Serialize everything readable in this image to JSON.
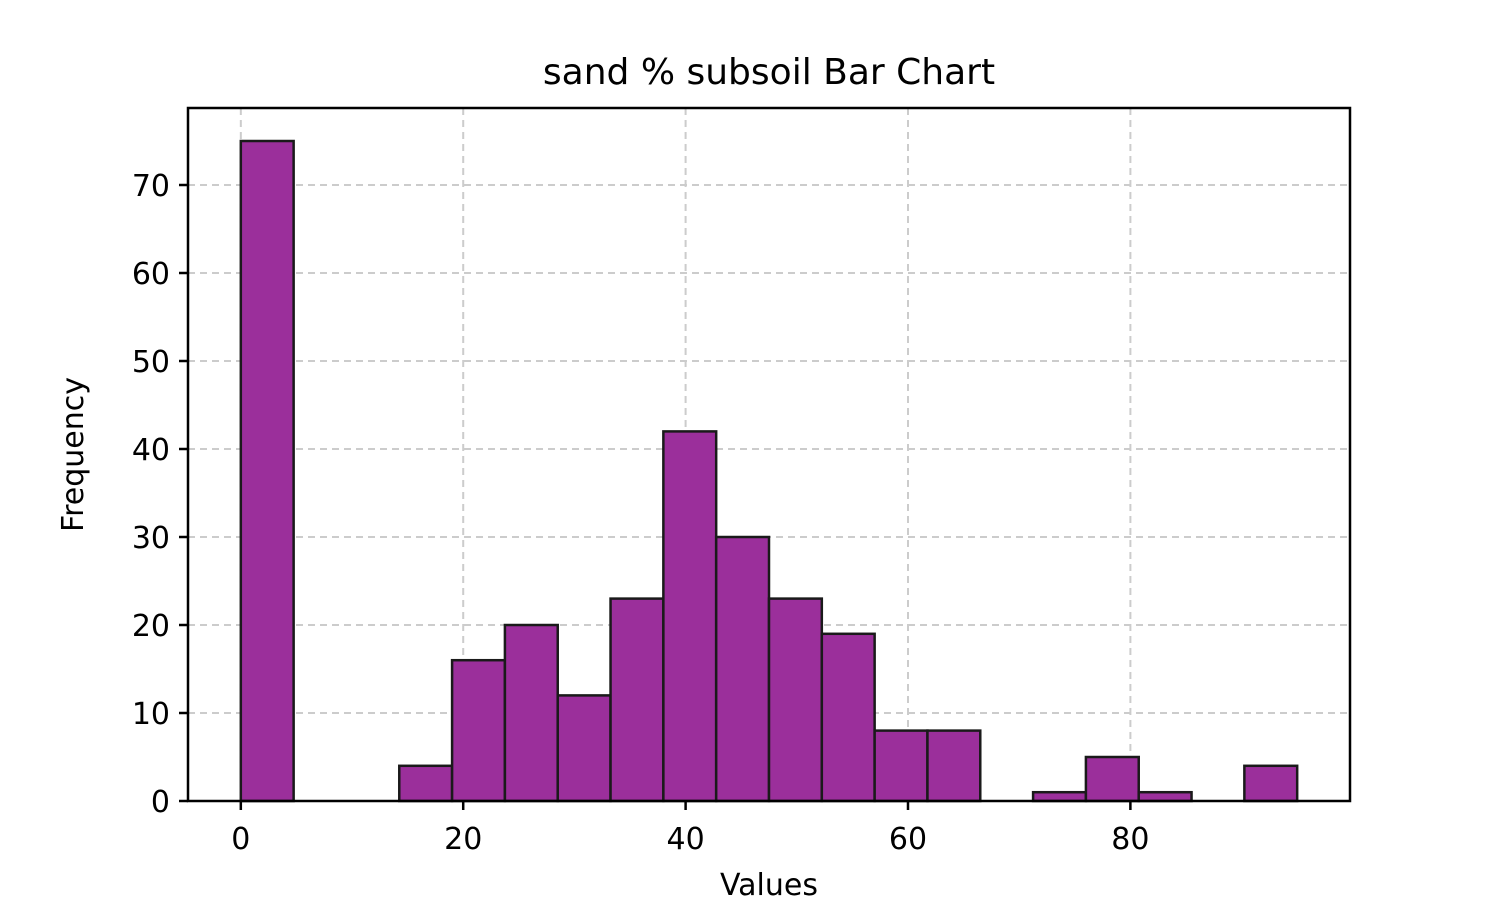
{
  "chart_data": {
    "type": "bar",
    "title": "sand % subsoil Bar Chart",
    "xlabel": "Values",
    "ylabel": "Frequency",
    "xlim": [
      -4.75,
      99.75
    ],
    "ylim": [
      0,
      78.75
    ],
    "xticks": [
      0,
      20,
      40,
      60,
      80
    ],
    "yticks": [
      0,
      10,
      20,
      30,
      40,
      50,
      60,
      70
    ],
    "grid": true,
    "bar_color": "#9b2f9b",
    "edge_color": "#1a1a1a",
    "bin_edges": [
      0,
      4.75,
      9.5,
      14.25,
      19,
      23.75,
      28.5,
      33.25,
      38,
      42.75,
      47.5,
      52.25,
      57,
      61.75,
      66.5,
      71.25,
      76,
      80.75,
      85.5,
      90.25,
      95
    ],
    "values": [
      75,
      0,
      0,
      4,
      16,
      20,
      12,
      23,
      42,
      30,
      23,
      19,
      8,
      8,
      0,
      1,
      5,
      1,
      0,
      4
    ]
  }
}
